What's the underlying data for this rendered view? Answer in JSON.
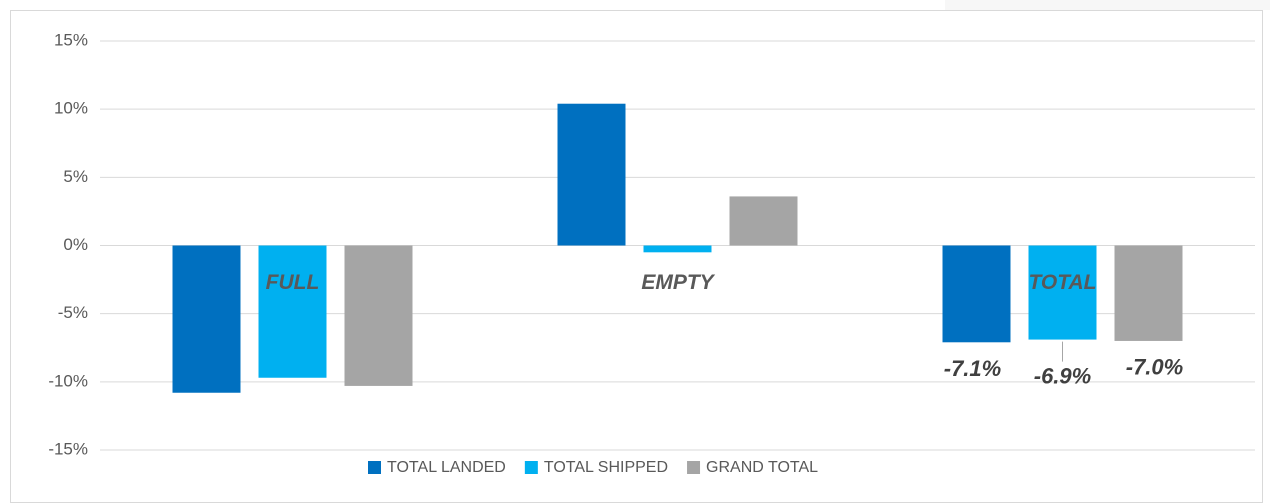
{
  "chart_data": {
    "type": "bar",
    "categories": [
      "FULL",
      "EMPTY",
      "TOTAL"
    ],
    "series": [
      {
        "name": "TOTAL LANDED",
        "color": "#0070c0",
        "values": [
          -10.8,
          10.4,
          -7.1
        ],
        "value_labels": [
          null,
          null,
          "-7.1%"
        ]
      },
      {
        "name": "TOTAL SHIPPED",
        "color": "#00b0f0",
        "values": [
          -9.7,
          -0.5,
          -6.9
        ],
        "value_labels": [
          null,
          null,
          "-6.9%"
        ]
      },
      {
        "name": "GRAND TOTAL",
        "color": "#a5a5a5",
        "values": [
          -10.3,
          3.6,
          -7.0
        ],
        "value_labels": [
          null,
          null,
          "-7.0%"
        ]
      }
    ],
    "ylim": [
      -15,
      15
    ],
    "yticks": [
      {
        "value": -15,
        "label": "-15%"
      },
      {
        "value": -10,
        "label": "-10%"
      },
      {
        "value": -5,
        "label": "-5%"
      },
      {
        "value": 0,
        "label": "0%"
      },
      {
        "value": 5,
        "label": "5%"
      },
      {
        "value": 10,
        "label": "10%"
      },
      {
        "value": 15,
        "label": "15%"
      }
    ],
    "grid": true,
    "legend": "bottom"
  }
}
